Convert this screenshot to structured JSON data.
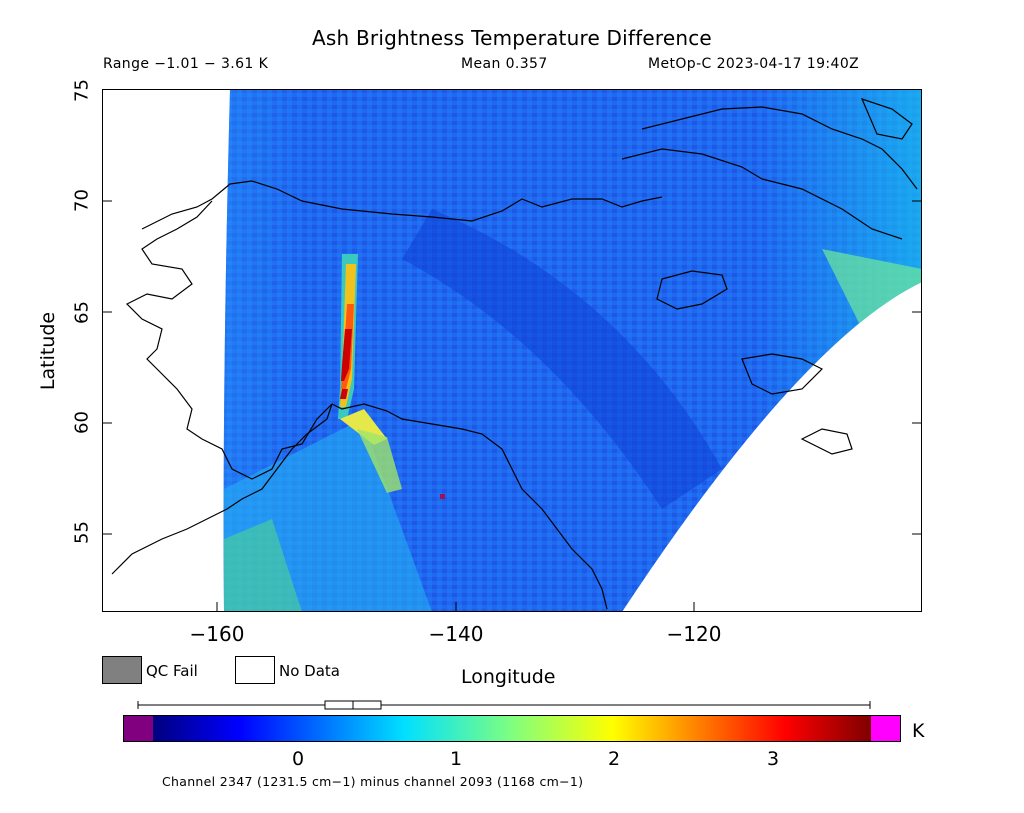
{
  "header": {
    "title": "Ash Brightness Temperature Difference",
    "range": "Range −1.01 − 3.61 K",
    "mean": "Mean 0.357",
    "satellite_time": "MetOp-C 2023-04-17 19:40Z"
  },
  "axes": {
    "x_label": "Longitude",
    "y_label": "Latitude",
    "x_ticks": [
      "−160",
      "−140",
      "−120"
    ],
    "y_ticks": [
      "75",
      "70",
      "65",
      "60",
      "55"
    ],
    "lon_range": [
      -170,
      -101
    ],
    "lat_range": [
      51.5,
      75
    ]
  },
  "legend": {
    "qc_fail": "QC Fail",
    "no_data": "No Data",
    "qc_fail_color": "#808080",
    "no_data_color": "#ffffff"
  },
  "colorbar": {
    "unit": "K",
    "range": [
      -1.01,
      3.61
    ],
    "ticks": [
      "0",
      "1",
      "2",
      "3"
    ],
    "under_color": "#800080",
    "over_color": "#ff00ff",
    "footnote": "Channel 2347 (1231.5 cm−1) minus channel 2093 (1168 cm−1)"
  },
  "colors": {
    "background_field": "#1f6cff",
    "plume_peak": "#cc0000"
  }
}
